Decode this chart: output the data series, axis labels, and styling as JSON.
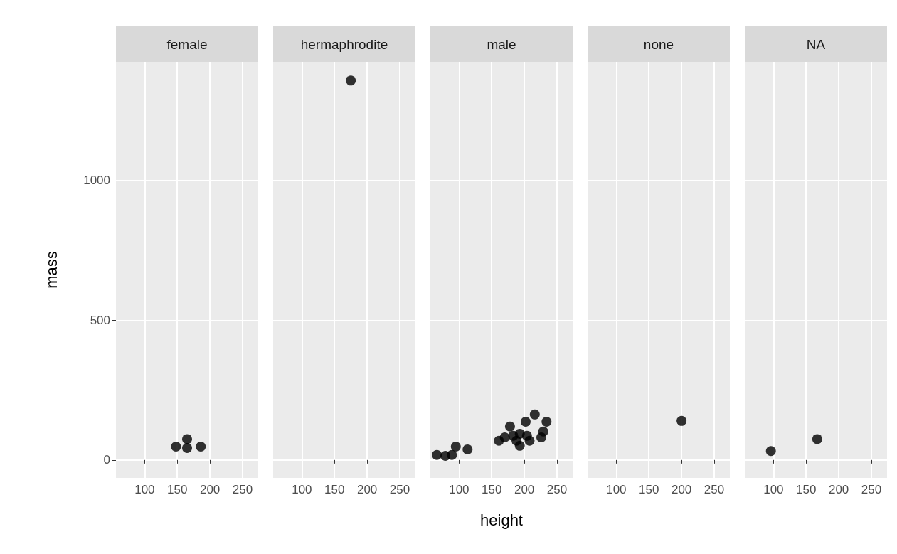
{
  "chart_data": [
    {
      "type": "scatter",
      "title": "female",
      "ylabel": "mass",
      "x": [
        148,
        165,
        165,
        180,
        186
      ],
      "values": [
        48,
        75,
        43,
        null,
        48
      ],
      "color": "#000000",
      "marker": "circle",
      "xlim": [
        56,
        274
      ],
      "ylim": [
        -64,
        1425
      ],
      "xticks": [
        100,
        150,
        200,
        250
      ],
      "yticks": [
        0,
        500,
        1000
      ],
      "grid": true
    },
    {
      "type": "scatter",
      "title": "hermaphrodite",
      "x": [
        175
      ],
      "values": [
        1358
      ],
      "color": "#000000",
      "marker": "circle",
      "xlim": [
        56,
        274
      ],
      "ylim": [
        -64,
        1425
      ],
      "xticks": [
        100,
        150,
        200,
        250
      ],
      "yticks": [
        0,
        500,
        1000
      ],
      "grid": true,
      "tick_labels": "x"
    },
    {
      "type": "scatter",
      "title": "male",
      "xlabel": "height",
      "x": [
        66,
        79,
        89,
        95,
        113,
        161,
        178,
        183,
        193,
        193,
        202,
        216,
        234,
        229,
        226,
        204,
        170,
        188,
        208
      ],
      "values": [
        18,
        15,
        18,
        48,
        38,
        69,
        120,
        87,
        94,
        51,
        137,
        163,
        137,
        102,
        81,
        87,
        81,
        69,
        69
      ],
      "color": "#000000",
      "marker": "circle",
      "xlim": [
        56,
        274
      ],
      "ylim": [
        -64,
        1425
      ],
      "xticks": [
        100,
        150,
        200,
        250
      ],
      "yticks": [
        0,
        500,
        1000
      ],
      "grid": true,
      "tick_labels": "x"
    },
    {
      "type": "scatter",
      "title": "none",
      "x": [
        200
      ],
      "values": [
        140
      ],
      "color": "#000000",
      "marker": "circle",
      "xlim": [
        56,
        274
      ],
      "ylim": [
        -64,
        1425
      ],
      "xticks": [
        100,
        150,
        200,
        250
      ],
      "yticks": [
        0,
        500,
        1000
      ],
      "grid": true,
      "tick_labels": "x"
    },
    {
      "type": "scatter",
      "title": "NA",
      "x": [
        96,
        167
      ],
      "values": [
        32,
        75
      ],
      "color": "#000000",
      "marker": "circle",
      "xlim": [
        56,
        274
      ],
      "ylim": [
        -64,
        1425
      ],
      "xticks": [
        100,
        150,
        200,
        250
      ],
      "yticks": [
        0,
        500,
        1000
      ],
      "grid": true,
      "tick_labels": "x"
    }
  ]
}
